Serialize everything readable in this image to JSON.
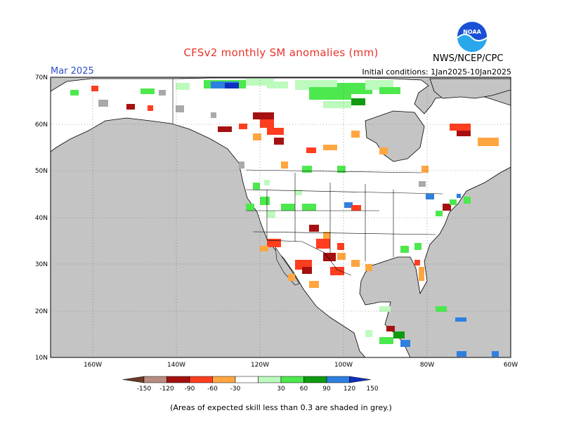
{
  "title": "CFSv2 monthly SM anomalies (mm)",
  "month": "Mar 2025",
  "agency": "NWS/NCEP/CPC",
  "logo_text": "NOAA",
  "initial_conditions": "Initial conditions: 1Jan2025-10Jan2025",
  "footnote": "(Areas of expected skill less than 0.3 are shaded in grey.)",
  "map": {
    "lon_range": [
      -170,
      -60
    ],
    "lat_range": [
      10,
      70
    ],
    "lat_ticks": [
      "70N",
      "60N",
      "50N",
      "40N",
      "30N",
      "20N",
      "10N"
    ],
    "lon_ticks": [
      "160W",
      "140W",
      "120W",
      "100W",
      "80W",
      "60W"
    ],
    "colors": {
      "ocean": "#c4c4c4",
      "land": "#ffffff",
      "low_skill": "#a9a9a9",
      "border": "#000000"
    }
  },
  "colorbar": {
    "labels": [
      "-150",
      "-120",
      "-90",
      "-60",
      "-30",
      "30",
      "60",
      "90",
      "120",
      "150"
    ],
    "colors": [
      "#6b3a28",
      "#b88d80",
      "#a61010",
      "#ff3d1f",
      "#ffa640",
      "#ffffff",
      "#bdfabd",
      "#4de84d",
      "#0f9a10",
      "#2f7fe0",
      "#0d2fbd"
    ]
  }
}
